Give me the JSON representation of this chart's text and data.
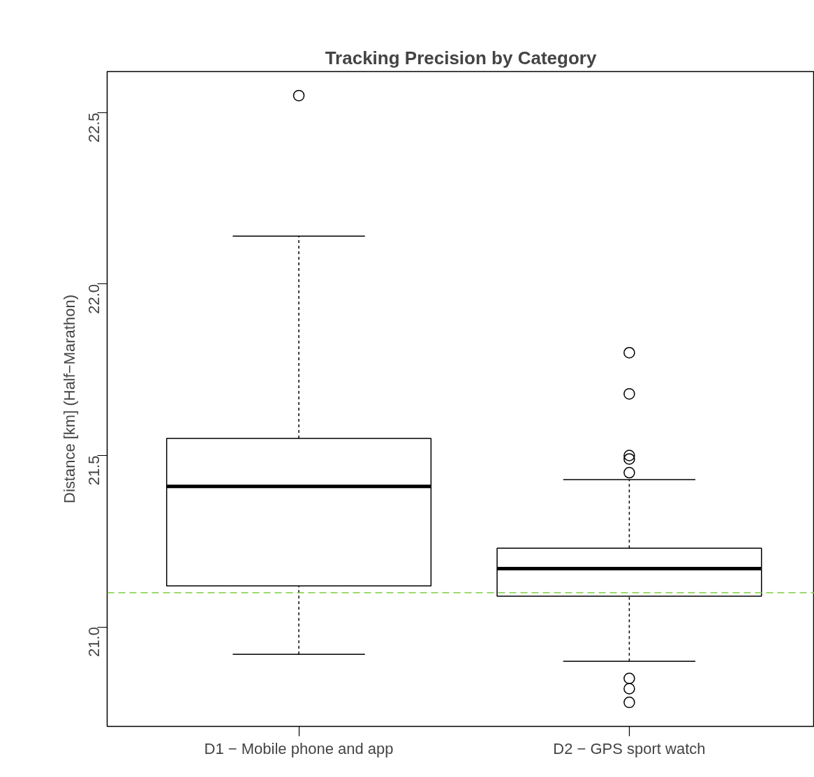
{
  "chart_data": {
    "type": "box",
    "title": "Tracking Precision by Category",
    "ylabel": "Distance [km] (Half−Marathon)",
    "categories": [
      "D1 − Mobile phone and app",
      "D2 − GPS sport watch"
    ],
    "boxes": [
      {
        "low": 20.92,
        "q1": 21.12,
        "median": 21.41,
        "q3": 21.55,
        "high": 22.14,
        "outliers": [
          22.55
        ]
      },
      {
        "low": 20.9,
        "q1": 21.09,
        "median": 21.17,
        "q3": 21.23,
        "high": 21.43,
        "outliers": [
          21.8,
          21.68,
          21.5,
          21.49,
          21.45,
          20.85,
          20.82,
          20.78
        ]
      }
    ],
    "ylim": [
      20.71,
      22.62
    ],
    "yticks": [
      {
        "value": 21.0,
        "label": "21.0"
      },
      {
        "value": 21.5,
        "label": "21.5"
      },
      {
        "value": 22.0,
        "label": "22.0"
      },
      {
        "value": 22.5,
        "label": "22.5"
      }
    ],
    "ref_lines": [
      {
        "axis": "y",
        "value": 21.1,
        "label": null,
        "color": "#7ccd3c",
        "line_style": "dashed"
      }
    ],
    "grid": false
  }
}
